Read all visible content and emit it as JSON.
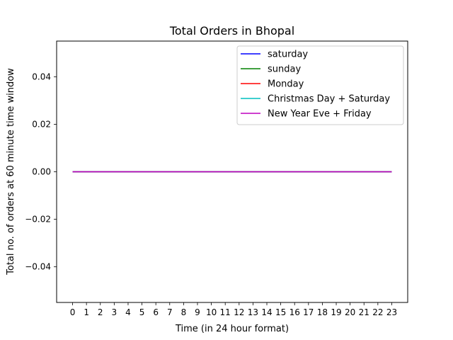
{
  "chart_data": {
    "type": "line",
    "title": "Total Orders in Bhopal",
    "xlabel": "Time (in 24 hour format)",
    "ylabel": "Total no. of orders at 60 minute time window",
    "x": [
      0,
      1,
      2,
      3,
      4,
      5,
      6,
      7,
      8,
      9,
      10,
      11,
      12,
      13,
      14,
      15,
      16,
      17,
      18,
      19,
      20,
      21,
      22,
      23
    ],
    "xticks": [
      "0",
      "1",
      "2",
      "3",
      "4",
      "5",
      "6",
      "7",
      "8",
      "9",
      "10",
      "11",
      "12",
      "13",
      "14",
      "15",
      "16",
      "17",
      "18",
      "19",
      "20",
      "21",
      "22",
      "23"
    ],
    "yticks": [
      "−0.04",
      "−0.02",
      "0.00",
      "0.02",
      "0.04"
    ],
    "ytick_values": [
      -0.04,
      -0.02,
      0.0,
      0.02,
      0.04
    ],
    "ylim": [
      -0.055,
      0.055
    ],
    "xlim": [
      -1.15,
      24.15
    ],
    "legend_position": "upper-right",
    "series": [
      {
        "name": "saturday",
        "color": "#0000ff",
        "values": [
          0,
          0,
          0,
          0,
          0,
          0,
          0,
          0,
          0,
          0,
          0,
          0,
          0,
          0,
          0,
          0,
          0,
          0,
          0,
          0,
          0,
          0,
          0,
          0
        ]
      },
      {
        "name": "sunday",
        "color": "#008000",
        "values": [
          0,
          0,
          0,
          0,
          0,
          0,
          0,
          0,
          0,
          0,
          0,
          0,
          0,
          0,
          0,
          0,
          0,
          0,
          0,
          0,
          0,
          0,
          0,
          0
        ]
      },
      {
        "name": "Monday",
        "color": "#ff0000",
        "values": [
          0,
          0,
          0,
          0,
          0,
          0,
          0,
          0,
          0,
          0,
          0,
          0,
          0,
          0,
          0,
          0,
          0,
          0,
          0,
          0,
          0,
          0,
          0,
          0
        ]
      },
      {
        "name": "Christmas Day + Saturday",
        "color": "#00bfbf",
        "values": [
          0,
          0,
          0,
          0,
          0,
          0,
          0,
          0,
          0,
          0,
          0,
          0,
          0,
          0,
          0,
          0,
          0,
          0,
          0,
          0,
          0,
          0,
          0,
          0
        ]
      },
      {
        "name": "New Year Eve + Friday",
        "color": "#bf00bf",
        "values": [
          0,
          0,
          0,
          0,
          0,
          0,
          0,
          0,
          0,
          0,
          0,
          0,
          0,
          0,
          0,
          0,
          0,
          0,
          0,
          0,
          0,
          0,
          0,
          0
        ]
      }
    ]
  }
}
